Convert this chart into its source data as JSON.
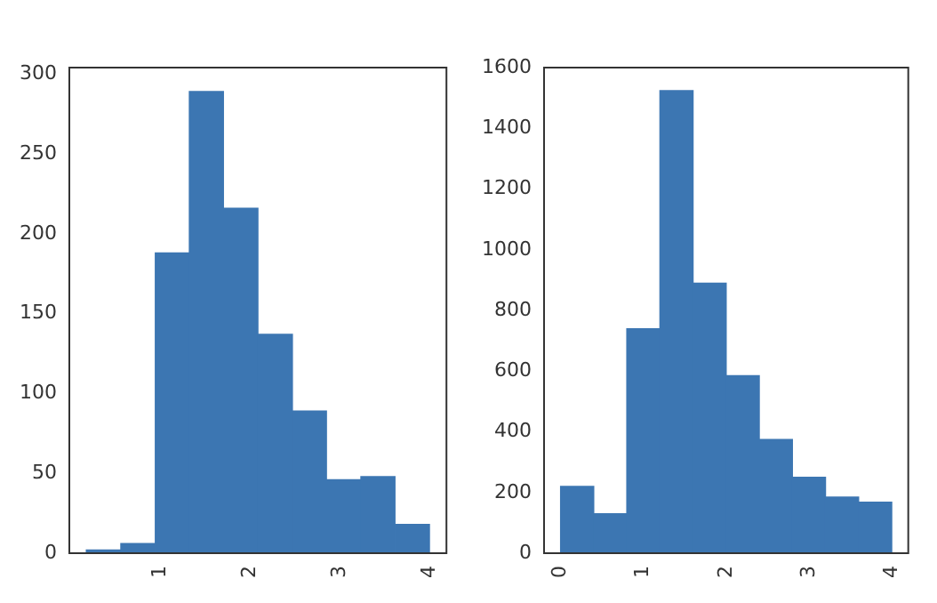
{
  "chart_data": [
    {
      "type": "histogram",
      "bins": [
        0.17,
        0.55,
        0.94,
        1.32,
        1.7,
        2.09,
        2.47,
        2.85,
        3.23,
        3.62,
        4.0
      ],
      "values": [
        2,
        6,
        188,
        289,
        216,
        137,
        89,
        46,
        48,
        18
      ],
      "color": "#3c76b2",
      "xlim": [
        -0.02,
        4.19
      ],
      "ylim": [
        0,
        304
      ],
      "xticks": [
        1,
        2,
        3,
        4
      ],
      "yticks": [
        0,
        50,
        100,
        150,
        200,
        250,
        300
      ]
    },
    {
      "type": "histogram",
      "bins": [
        0,
        0.4,
        0.8,
        1.2,
        1.6,
        2.0,
        2.4,
        2.8,
        3.2,
        3.6,
        4.0
      ],
      "values": [
        220,
        130,
        740,
        1525,
        890,
        585,
        375,
        250,
        185,
        168
      ],
      "color": "#3c76b2",
      "xlim": [
        -0.2,
        4.2
      ],
      "ylim": [
        0,
        1601
      ],
      "xticks": [
        0,
        1,
        2,
        3,
        4
      ],
      "yticks": [
        0,
        200,
        400,
        600,
        800,
        1000,
        1200,
        1400,
        1600
      ]
    }
  ]
}
